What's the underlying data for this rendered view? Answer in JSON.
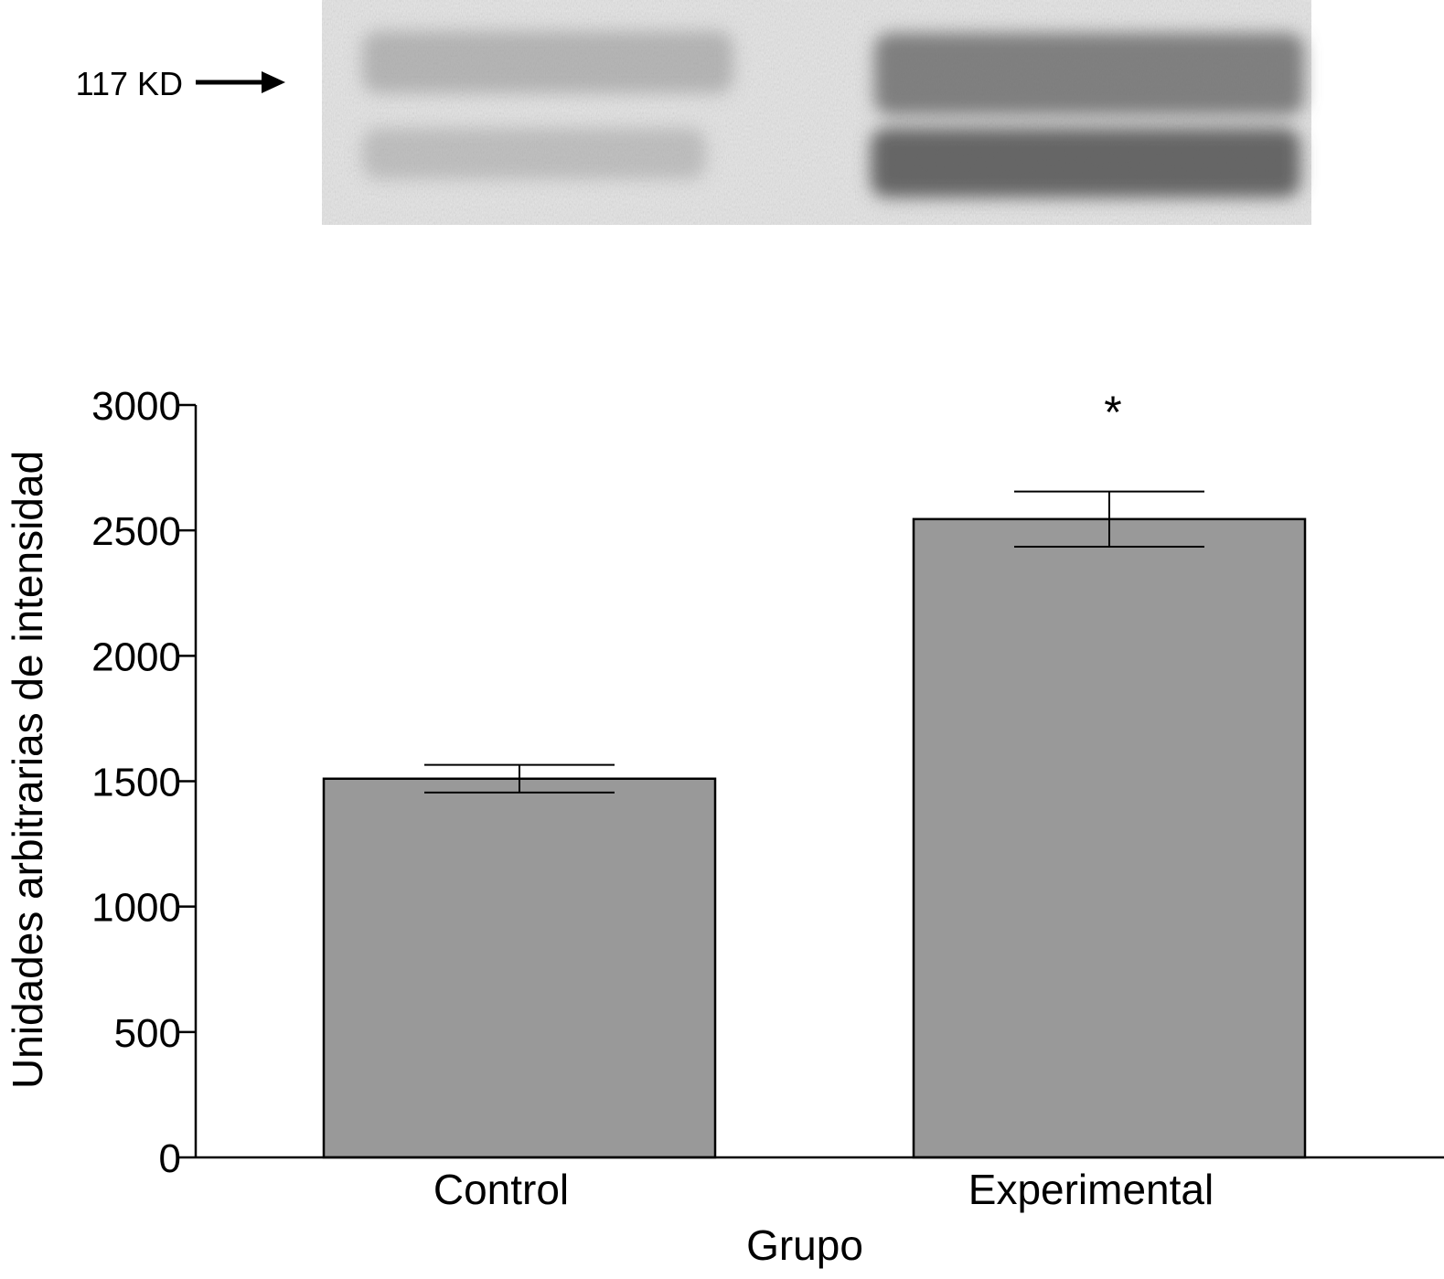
{
  "blot": {
    "marker_label": "117 KD"
  },
  "chart_data": {
    "type": "bar",
    "categories": [
      "Control",
      "Experimental"
    ],
    "values": [
      1510,
      2545
    ],
    "error": [
      55,
      110
    ],
    "annotations": [
      {
        "category": "Experimental",
        "text": "*"
      }
    ],
    "title": "",
    "xlabel": "Grupo",
    "ylabel": "Unidades arbitrarias de intensidad",
    "ylim": [
      0,
      3000
    ],
    "yticks": [
      0,
      500,
      1000,
      1500,
      2000,
      2500,
      3000
    ],
    "bar_color": "#999999",
    "grid": false
  }
}
